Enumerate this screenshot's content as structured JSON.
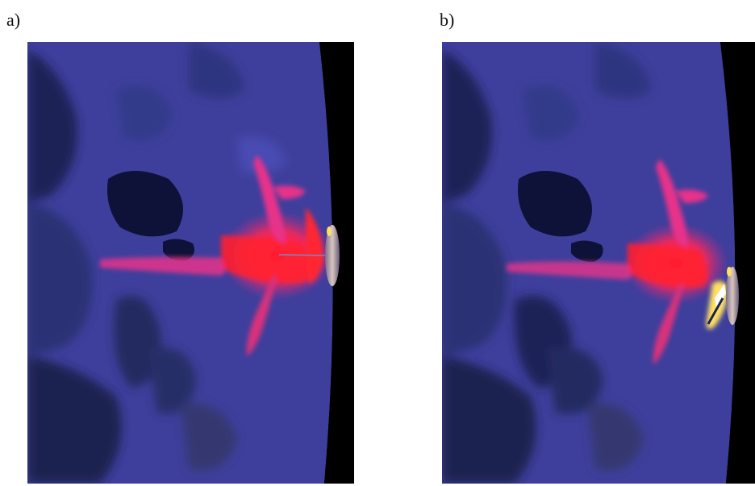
{
  "figure": {
    "panels": [
      {
        "label": "a)"
      },
      {
        "label": "b)"
      }
    ],
    "colors": {
      "tissue_blue": "#3e3f9c",
      "tissue_blue_light": "#4a4cb4",
      "cavity_dark": "#101642",
      "deep_navy": "#1a2350",
      "hot_red": "#ff2030",
      "hot_magenta": "#e8338a",
      "hot_yellow": "#ffe060",
      "outside_black": "#000000"
    }
  }
}
